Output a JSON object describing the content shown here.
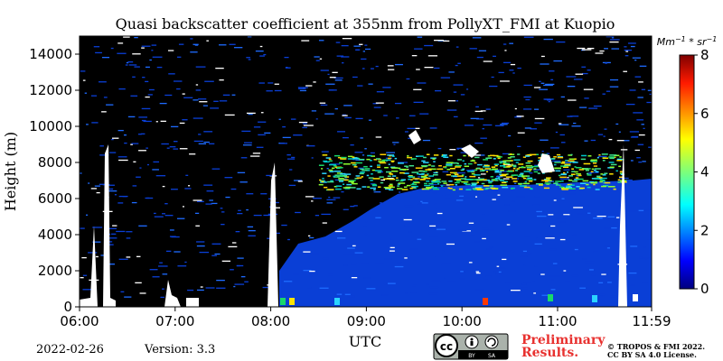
{
  "chart_data": {
    "type": "heatmap",
    "title": "Quasi backscatter coefficient at 355nm from PollyXT_FMI at Kuopio",
    "xlabel": "UTC",
    "ylabel": "Height (m)",
    "x_ticks": [
      "06:00",
      "07:00",
      "08:00",
      "09:00",
      "10:00",
      "11:00",
      "11:59"
    ],
    "y_ticks": [
      "0",
      "2000",
      "4000",
      "6000",
      "8000",
      "10000",
      "12000",
      "14000"
    ],
    "xlim": [
      "06:00",
      "11:59"
    ],
    "ylim": [
      0,
      15000
    ],
    "colorbar": {
      "unit_label": "Mm^-1 * sr^-1",
      "ticks": [
        "0",
        "2",
        "4",
        "6",
        "8"
      ],
      "range": [
        0,
        8
      ],
      "colormap": "jet"
    },
    "features": [
      {
        "label": "cloud layer",
        "height_range_m": [
          6500,
          8500
        ],
        "time_range": [
          "08:30",
          "11:40"
        ],
        "typical_value": 3
      },
      {
        "label": "low-signal regions",
        "color": "#0a3fd6",
        "height_range_m": [
          0,
          6000
        ],
        "time_range": [
          "08:30",
          "11:59"
        ],
        "typical_value": 0.3
      }
    ]
  },
  "footer": {
    "date": "2022-02-26",
    "version": "Version: 3.3",
    "license_badge": "cc-by-sa-icon",
    "preliminary_line1": "Preliminary",
    "preliminary_line2": "Results.",
    "copyright_line1": "© TROPOS & FMI 2022.",
    "copyright_line2": "CC BY SA 4.0 License."
  }
}
